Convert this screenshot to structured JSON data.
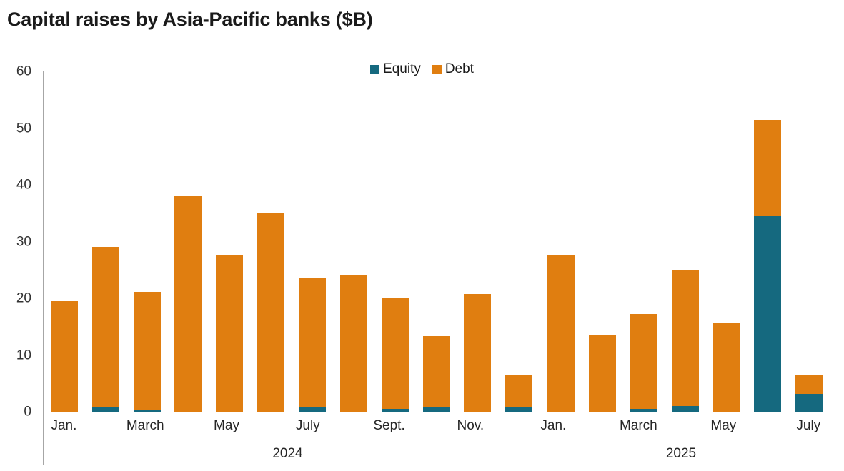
{
  "chart_data": {
    "type": "bar",
    "stacked": true,
    "title": "Capital raises by Asia-Pacific banks ($B)",
    "xlabel": "",
    "ylabel": "",
    "ylim": [
      0,
      60
    ],
    "yticks": [
      0,
      10,
      20,
      30,
      40,
      50,
      60
    ],
    "legend_position": "top-center",
    "grid": false,
    "series": [
      {
        "name": "Equity",
        "color": "#15697F"
      },
      {
        "name": "Debt",
        "color": "#E07E10"
      }
    ],
    "groups": [
      {
        "year": "2024",
        "tick_labels": [
          "Jan.",
          "",
          "March",
          "",
          "May",
          "",
          "July",
          "",
          "Sept.",
          "",
          "Nov.",
          ""
        ],
        "equity": [
          0,
          0.8,
          0.4,
          0,
          0,
          0,
          0.8,
          0,
          0.5,
          0.8,
          0,
          0.8
        ],
        "debt": [
          19.5,
          28.2,
          20.7,
          38.0,
          27.5,
          35.0,
          22.7,
          24.1,
          19.5,
          12.5,
          20.8,
          5.8
        ]
      },
      {
        "year": "2025",
        "tick_labels": [
          "Jan.",
          "",
          "March",
          "",
          "May",
          "",
          "July"
        ],
        "equity": [
          0,
          0,
          0.5,
          1.0,
          0,
          34.5,
          3.1
        ],
        "debt": [
          27.6,
          13.6,
          16.7,
          24.0,
          15.6,
          17.0,
          3.4
        ]
      }
    ]
  }
}
